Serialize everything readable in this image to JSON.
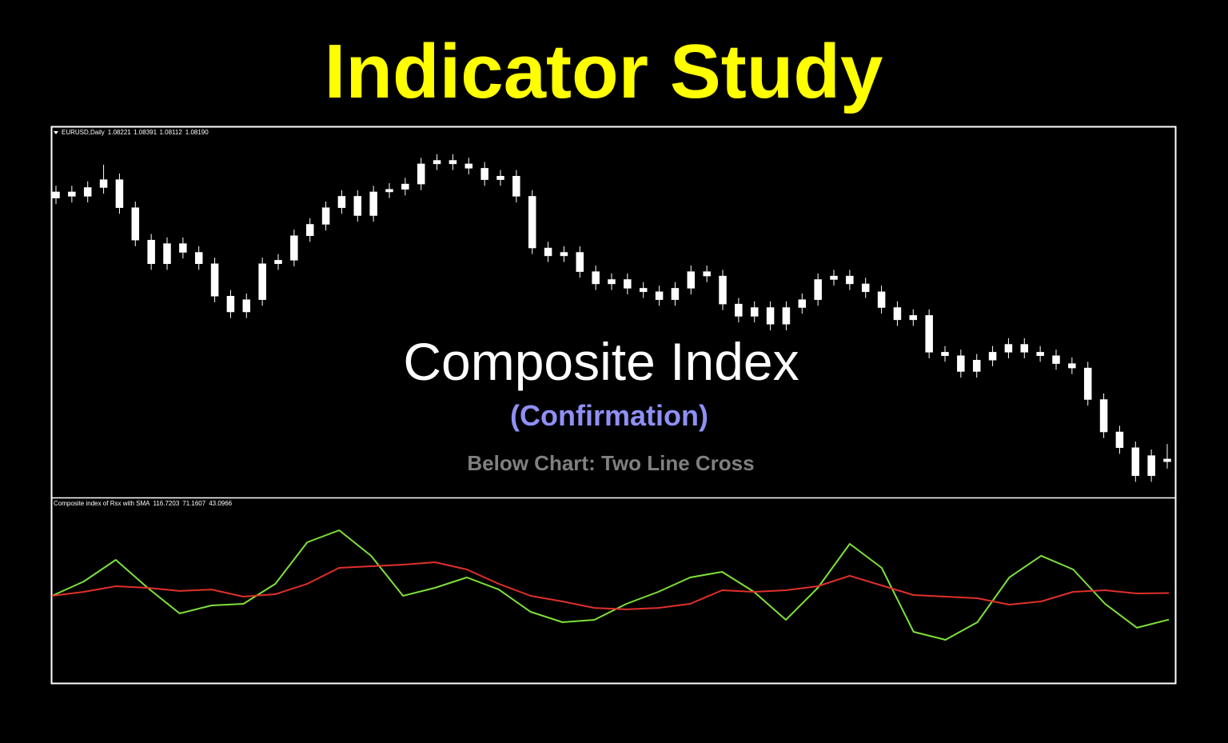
{
  "title": "Indicator Study",
  "overlay": {
    "heading": "Composite Index",
    "subheading": "(Confirmation)",
    "note": "Below Chart: Two Line Cross"
  },
  "chart_data": [
    {
      "type": "candlestick",
      "label": "EURUSD,Daily",
      "header_values": [
        "1.08221",
        "1.08391",
        "1.08112",
        "1.08190"
      ],
      "color": "#ffffff",
      "ylim": [
        1.078,
        1.12
      ],
      "open": [
        1.112,
        1.1127,
        1.1122,
        1.1132,
        1.1141,
        1.1109,
        1.1072,
        1.1045,
        1.1068,
        1.1058,
        1.1045,
        1.1008,
        1.099,
        1.1004,
        1.1045,
        1.1049,
        1.1077,
        1.109,
        1.1109,
        1.1122,
        1.11,
        1.1127,
        1.113,
        1.1136,
        1.1159,
        1.1163,
        1.1159,
        1.1154,
        1.1141,
        1.1145,
        1.1122,
        1.1063,
        1.1054,
        1.1058,
        1.1036,
        1.1022,
        1.1027,
        1.1017,
        1.1013,
        1.1004,
        1.1017,
        1.1036,
        1.1031,
        1.0999,
        1.0985,
        1.0995,
        1.0976,
        1.0995,
        1.1004,
        1.1027,
        1.1031,
        1.1022,
        1.1013,
        1.0995,
        1.0981,
        1.0986,
        1.0944,
        1.094,
        1.0922,
        1.0935,
        1.0944,
        1.0953,
        1.0944,
        1.094,
        1.0931,
        1.0926,
        1.089,
        1.0853,
        1.0835,
        1.0803,
        1.08221
      ],
      "high": [
        1.1134,
        1.1134,
        1.1139,
        1.1158,
        1.1148,
        1.1116,
        1.1079,
        1.1075,
        1.1075,
        1.1065,
        1.1052,
        1.1015,
        1.1011,
        1.1052,
        1.1056,
        1.1084,
        1.1097,
        1.1116,
        1.1129,
        1.1129,
        1.1134,
        1.1137,
        1.1143,
        1.1166,
        1.117,
        1.117,
        1.1166,
        1.1161,
        1.1152,
        1.1152,
        1.1129,
        1.107,
        1.1065,
        1.1065,
        1.1043,
        1.1034,
        1.1034,
        1.1024,
        1.102,
        1.1024,
        1.1043,
        1.1043,
        1.1038,
        1.1006,
        1.1002,
        1.1002,
        1.1002,
        1.1011,
        1.1034,
        1.1038,
        1.1038,
        1.1029,
        1.102,
        1.1002,
        1.0993,
        1.0993,
        1.0951,
        1.0947,
        1.0942,
        1.0951,
        1.096,
        1.096,
        1.0951,
        1.0947,
        1.0938,
        1.0933,
        1.0897,
        1.086,
        1.0842,
        1.0833,
        1.08391
      ],
      "low": [
        1.1113,
        1.1115,
        1.1115,
        1.1125,
        1.1102,
        1.1065,
        1.1038,
        1.1038,
        1.1051,
        1.1038,
        1.1001,
        1.0983,
        1.0983,
        1.0997,
        1.1038,
        1.1042,
        1.107,
        1.1083,
        1.1102,
        1.1093,
        1.1093,
        1.112,
        1.1123,
        1.1129,
        1.1152,
        1.1152,
        1.1147,
        1.1134,
        1.1134,
        1.1115,
        1.1056,
        1.1047,
        1.1047,
        1.1029,
        1.1015,
        1.1015,
        1.101,
        1.1006,
        1.0997,
        1.0997,
        1.101,
        1.1024,
        1.0992,
        1.0978,
        1.0978,
        1.0969,
        1.0969,
        1.0988,
        1.0997,
        1.102,
        1.1015,
        1.1006,
        1.0988,
        1.0974,
        1.0974,
        1.0937,
        1.0933,
        1.0915,
        1.0915,
        1.0928,
        1.0937,
        1.0937,
        1.0933,
        1.0924,
        1.0919,
        1.0883,
        1.0846,
        1.0828,
        1.0796,
        1.0796,
        1.08112
      ],
      "close": [
        1.1127,
        1.1122,
        1.1132,
        1.1141,
        1.1109,
        1.1072,
        1.1045,
        1.1068,
        1.1058,
        1.1045,
        1.1008,
        1.099,
        1.1004,
        1.1045,
        1.1049,
        1.1077,
        1.109,
        1.1109,
        1.1122,
        1.11,
        1.1127,
        1.113,
        1.1136,
        1.1159,
        1.1163,
        1.1159,
        1.1154,
        1.1141,
        1.1145,
        1.1122,
        1.1063,
        1.1054,
        1.1058,
        1.1036,
        1.1022,
        1.1027,
        1.1017,
        1.1013,
        1.1004,
        1.1017,
        1.1036,
        1.1031,
        1.0999,
        1.0985,
        1.0995,
        1.0976,
        1.0995,
        1.1004,
        1.1027,
        1.1031,
        1.1022,
        1.1013,
        1.0995,
        1.0981,
        1.0986,
        1.0944,
        1.094,
        1.0922,
        1.0935,
        1.0944,
        1.0953,
        1.0944,
        1.094,
        1.0931,
        1.0926,
        1.089,
        1.0853,
        1.0835,
        1.0803,
        1.0826,
        1.0819
      ]
    },
    {
      "type": "line",
      "label": "Composite index of Rsx with SMA",
      "header_values": [
        "116.7203",
        "71.1607",
        "43.0966"
      ],
      "ylim": [
        -25,
        170
      ],
      "series": [
        {
          "name": "Composite index",
          "color": "#7fe03a",
          "values": [
            68.3,
            83.5,
            106.4,
            76.7,
            49.6,
            58.1,
            59.8,
            81.0,
            125.1,
            137.8,
            110.7,
            68.3,
            76.7,
            87.8,
            75.0,
            51.3,
            40.3,
            42.8,
            59.8,
            72.5,
            87.8,
            93.7,
            72.5,
            42.8,
            76.7,
            123.4,
            97.9,
            30.1,
            21.6,
            40.3,
            87.8,
            110.7,
            96.2,
            59.8,
            34.4,
            43.1
          ]
        },
        {
          "name": "SMA",
          "color": "#e0302a",
          "values": [
            68.3,
            72.5,
            78.4,
            76.7,
            73.4,
            75.0,
            67.4,
            70.0,
            81.0,
            97.9,
            99.6,
            101.3,
            103.9,
            96.2,
            81.0,
            68.3,
            62.3,
            55.5,
            53.9,
            55.5,
            59.8,
            74.2,
            72.5,
            74.2,
            78.4,
            89.5,
            79.3,
            69.1,
            67.4,
            65.7,
            58.9,
            62.3,
            72.5,
            74.2,
            70.8,
            71.2
          ]
        }
      ]
    }
  ]
}
